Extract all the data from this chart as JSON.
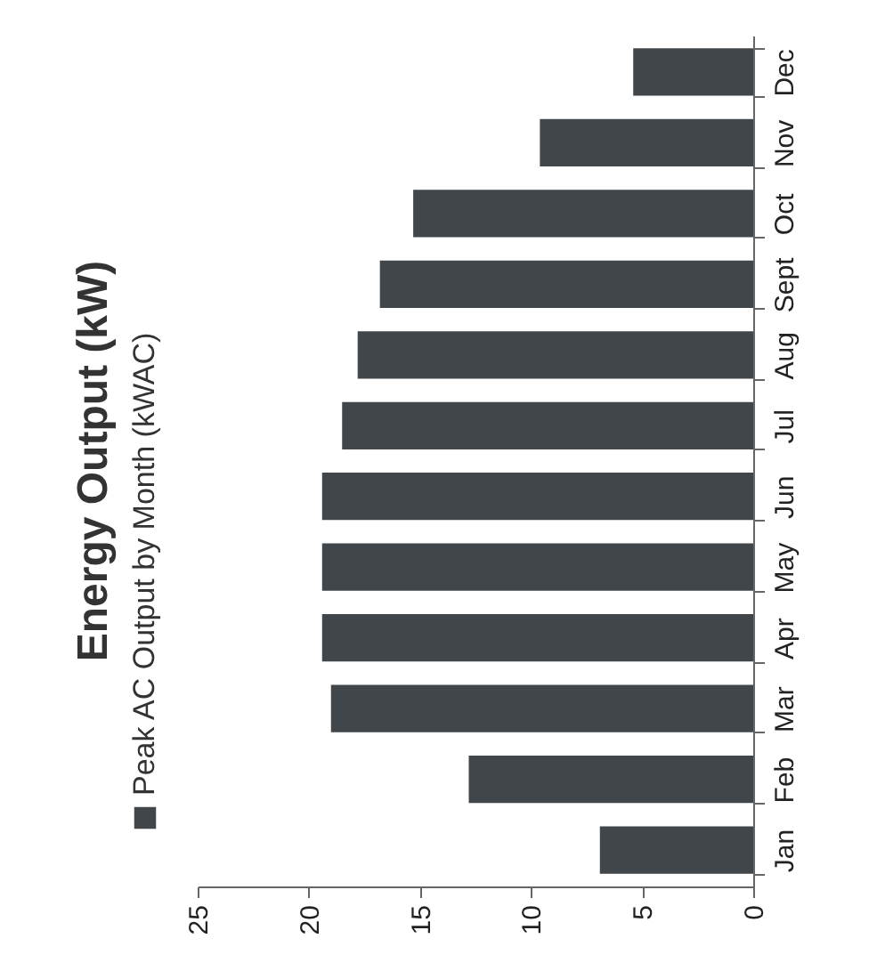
{
  "chart_data": {
    "type": "bar",
    "orientation": "horizontal",
    "title": "Energy Output (kW)",
    "categories": [
      "Dec",
      "Nov",
      "Oct",
      "Sept",
      "Aug",
      "Jul",
      "Jun",
      "May",
      "Apr",
      "Mar",
      "Feb",
      "Jan"
    ],
    "series": [
      {
        "name": "Peak AC Output by Month (kWAC)",
        "color": "#41464a",
        "values": [
          5.4,
          9.6,
          15.3,
          16.8,
          17.8,
          18.5,
          19.4,
          19.4,
          19.4,
          19.0,
          12.8,
          6.9
        ]
      }
    ],
    "xlim": [
      25,
      0
    ],
    "xticks": [
      25,
      20,
      15,
      10,
      5,
      0
    ],
    "legend": "left"
  }
}
